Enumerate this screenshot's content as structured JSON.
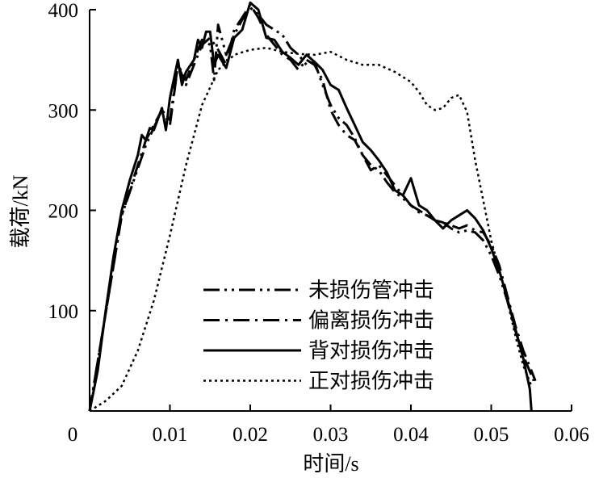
{
  "chart_data": {
    "type": "line",
    "title": "",
    "xlabel": "时间/s",
    "ylabel": "载荷/kN",
    "xlim": [
      0,
      0.06
    ],
    "ylim": [
      0,
      400
    ],
    "x_ticks": [
      "0",
      "0.01",
      "0.02",
      "0.03",
      "0.04",
      "0.05",
      "0.06"
    ],
    "y_ticks": [
      "100",
      "200",
      "300",
      "400"
    ],
    "legend_position": "lower-center",
    "grid": false,
    "series": [
      {
        "name": "未损伤管冲击",
        "style": "dash-dot-dot",
        "color": "#000000",
        "points": [
          [
            0,
            0
          ],
          [
            0.004,
            195
          ],
          [
            0.007,
            265
          ],
          [
            0.009,
            300
          ],
          [
            0.01,
            290
          ],
          [
            0.011,
            345
          ],
          [
            0.012,
            330
          ],
          [
            0.013,
            350
          ],
          [
            0.014,
            370
          ],
          [
            0.015,
            365
          ],
          [
            0.0155,
            330
          ],
          [
            0.016,
            385
          ],
          [
            0.017,
            355
          ],
          [
            0.018,
            375
          ],
          [
            0.019,
            390
          ],
          [
            0.02,
            402
          ],
          [
            0.021,
            395
          ],
          [
            0.022,
            385
          ],
          [
            0.023,
            380
          ],
          [
            0.024,
            375
          ],
          [
            0.025,
            362
          ],
          [
            0.026,
            355
          ],
          [
            0.027,
            345
          ],
          [
            0.028,
            348
          ],
          [
            0.029,
            325
          ],
          [
            0.03,
            305
          ],
          [
            0.031,
            292
          ],
          [
            0.032,
            285
          ],
          [
            0.033,
            272
          ],
          [
            0.034,
            255
          ],
          [
            0.035,
            245
          ],
          [
            0.036,
            240
          ],
          [
            0.037,
            228
          ],
          [
            0.038,
            218
          ],
          [
            0.039,
            212
          ],
          [
            0.04,
            205
          ],
          [
            0.041,
            200
          ],
          [
            0.042,
            195
          ],
          [
            0.043,
            190
          ],
          [
            0.044,
            188
          ],
          [
            0.045,
            182
          ],
          [
            0.046,
            178
          ],
          [
            0.047,
            180
          ],
          [
            0.048,
            178
          ],
          [
            0.049,
            170
          ],
          [
            0.05,
            155
          ],
          [
            0.051,
            135
          ],
          [
            0.052,
            110
          ],
          [
            0.053,
            80
          ],
          [
            0.054,
            55
          ],
          [
            0.0553,
            30
          ]
        ]
      },
      {
        "name": "偏离损伤冲击",
        "style": "dash-dot",
        "color": "#000000",
        "points": [
          [
            0,
            0
          ],
          [
            0.004,
            195
          ],
          [
            0.007,
            270
          ],
          [
            0.009,
            300
          ],
          [
            0.01,
            285
          ],
          [
            0.011,
            345
          ],
          [
            0.012,
            325
          ],
          [
            0.013,
            345
          ],
          [
            0.014,
            365
          ],
          [
            0.015,
            372
          ],
          [
            0.016,
            360
          ],
          [
            0.017,
            345
          ],
          [
            0.018,
            380
          ],
          [
            0.019,
            392
          ],
          [
            0.02,
            405
          ],
          [
            0.021,
            392
          ],
          [
            0.022,
            375
          ],
          [
            0.023,
            365
          ],
          [
            0.024,
            355
          ],
          [
            0.025,
            350
          ],
          [
            0.026,
            340
          ],
          [
            0.027,
            350
          ],
          [
            0.028,
            345
          ],
          [
            0.029,
            330
          ],
          [
            0.03,
            300
          ],
          [
            0.031,
            285
          ],
          [
            0.032,
            275
          ],
          [
            0.033,
            270
          ],
          [
            0.034,
            255
          ],
          [
            0.035,
            240
          ],
          [
            0.036,
            245
          ],
          [
            0.037,
            235
          ],
          [
            0.038,
            225
          ],
          [
            0.039,
            215
          ],
          [
            0.04,
            205
          ],
          [
            0.041,
            198
          ],
          [
            0.042,
            195
          ],
          [
            0.043,
            190
          ],
          [
            0.044,
            188
          ],
          [
            0.045,
            185
          ],
          [
            0.046,
            182
          ],
          [
            0.047,
            185
          ],
          [
            0.048,
            180
          ],
          [
            0.049,
            178
          ],
          [
            0.05,
            165
          ],
          [
            0.051,
            145
          ],
          [
            0.052,
            115
          ],
          [
            0.053,
            85
          ],
          [
            0.054,
            60
          ],
          [
            0.055,
            40
          ],
          [
            0.0555,
            30
          ]
        ]
      },
      {
        "name": "背对损伤冲击",
        "style": "solid",
        "color": "#000000",
        "points": [
          [
            0,
            0
          ],
          [
            0.001,
            40
          ],
          [
            0.002,
            100
          ],
          [
            0.003,
            155
          ],
          [
            0.004,
            200
          ],
          [
            0.005,
            230
          ],
          [
            0.006,
            255
          ],
          [
            0.0065,
            275
          ],
          [
            0.007,
            270
          ],
          [
            0.0075,
            282
          ],
          [
            0.008,
            280
          ],
          [
            0.009,
            302
          ],
          [
            0.0095,
            280
          ],
          [
            0.01,
            312
          ],
          [
            0.011,
            350
          ],
          [
            0.0115,
            325
          ],
          [
            0.012,
            338
          ],
          [
            0.013,
            350
          ],
          [
            0.0135,
            370
          ],
          [
            0.014,
            362
          ],
          [
            0.0145,
            378
          ],
          [
            0.015,
            378
          ],
          [
            0.0155,
            345
          ],
          [
            0.016,
            355
          ],
          [
            0.017,
            342
          ],
          [
            0.018,
            372
          ],
          [
            0.019,
            380
          ],
          [
            0.02,
            407
          ],
          [
            0.021,
            400
          ],
          [
            0.022,
            372
          ],
          [
            0.023,
            370
          ],
          [
            0.024,
            358
          ],
          [
            0.025,
            352
          ],
          [
            0.026,
            345
          ],
          [
            0.027,
            355
          ],
          [
            0.028,
            348
          ],
          [
            0.029,
            340
          ],
          [
            0.03,
            325
          ],
          [
            0.031,
            320
          ],
          [
            0.032,
            302
          ],
          [
            0.033,
            285
          ],
          [
            0.034,
            268
          ],
          [
            0.035,
            260
          ],
          [
            0.036,
            250
          ],
          [
            0.037,
            238
          ],
          [
            0.038,
            220
          ],
          [
            0.039,
            215
          ],
          [
            0.04,
            232
          ],
          [
            0.041,
            205
          ],
          [
            0.042,
            200
          ],
          [
            0.043,
            190
          ],
          [
            0.044,
            182
          ],
          [
            0.045,
            190
          ],
          [
            0.046,
            195
          ],
          [
            0.047,
            200
          ],
          [
            0.048,
            192
          ],
          [
            0.049,
            180
          ],
          [
            0.05,
            162
          ],
          [
            0.051,
            140
          ],
          [
            0.052,
            112
          ],
          [
            0.053,
            82
          ],
          [
            0.054,
            52
          ],
          [
            0.0548,
            22
          ],
          [
            0.055,
            0
          ]
        ]
      },
      {
        "name": "正对损伤冲击",
        "style": "dotted",
        "color": "#000000",
        "points": [
          [
            0,
            0
          ],
          [
            0.002,
            10
          ],
          [
            0.004,
            25
          ],
          [
            0.006,
            60
          ],
          [
            0.008,
            110
          ],
          [
            0.01,
            175
          ],
          [
            0.012,
            245
          ],
          [
            0.014,
            305
          ],
          [
            0.016,
            340
          ],
          [
            0.018,
            355
          ],
          [
            0.02,
            360
          ],
          [
            0.022,
            362
          ],
          [
            0.024,
            358
          ],
          [
            0.026,
            356
          ],
          [
            0.028,
            355
          ],
          [
            0.03,
            358
          ],
          [
            0.032,
            350
          ],
          [
            0.034,
            345
          ],
          [
            0.036,
            345
          ],
          [
            0.038,
            338
          ],
          [
            0.04,
            328
          ],
          [
            0.041,
            318
          ],
          [
            0.042,
            305
          ],
          [
            0.043,
            300
          ],
          [
            0.044,
            302
          ],
          [
            0.045,
            312
          ],
          [
            0.046,
            315
          ],
          [
            0.047,
            298
          ],
          [
            0.048,
            250
          ],
          [
            0.049,
            210
          ],
          [
            0.05,
            170
          ],
          [
            0.051,
            140
          ],
          [
            0.052,
            110
          ],
          [
            0.053,
            75
          ],
          [
            0.054,
            45
          ],
          [
            0.055,
            25
          ]
        ]
      }
    ]
  }
}
